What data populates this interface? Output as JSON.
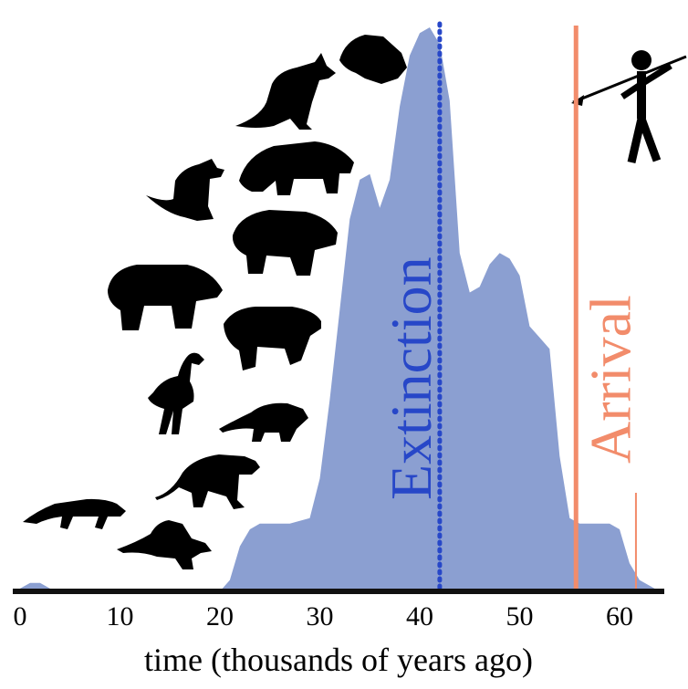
{
  "chart_data": {
    "type": "area",
    "xlabel": "time (thousands of years ago)",
    "xlim": [
      0,
      65
    ],
    "ylim": [
      0,
      1
    ],
    "grid": false,
    "x_ticks": [
      "0",
      "10",
      "20",
      "30",
      "40",
      "50",
      "60"
    ],
    "tick_values": [
      0,
      10,
      20,
      30,
      40,
      50,
      60
    ],
    "series": [
      {
        "color": "#8b9fd1",
        "x": [
          0,
          1,
          2,
          3,
          4,
          5,
          20,
          21,
          22,
          23,
          24,
          25,
          27,
          29,
          30,
          31,
          32,
          33,
          34,
          35,
          36,
          37,
          38,
          39,
          40,
          41,
          42,
          43,
          44,
          45,
          46,
          47,
          48,
          49,
          50,
          51,
          52,
          53,
          54,
          55,
          56,
          57,
          58,
          59,
          60,
          61,
          62,
          63,
          64
        ],
        "y": [
          0.005,
          0.015,
          0.015,
          0.005,
          0.0,
          0.0,
          0.0,
          0.02,
          0.08,
          0.11,
          0.12,
          0.12,
          0.12,
          0.13,
          0.2,
          0.34,
          0.5,
          0.66,
          0.73,
          0.74,
          0.68,
          0.73,
          0.86,
          0.95,
          0.99,
          1.0,
          0.97,
          0.87,
          0.6,
          0.53,
          0.54,
          0.58,
          0.6,
          0.59,
          0.56,
          0.47,
          0.45,
          0.43,
          0.24,
          0.13,
          0.12,
          0.12,
          0.12,
          0.12,
          0.11,
          0.05,
          0.02,
          0.01,
          0.0
        ]
      }
    ],
    "annotations": [
      {
        "text": "Extinction",
        "x": 42,
        "color": "#2747c8",
        "line": "dotted"
      },
      {
        "text": "Arrival",
        "x": 55,
        "color": "#f28c6b",
        "line": "solid"
      }
    ],
    "extra_lines": [
      {
        "x": 61,
        "color": "#f28c6b"
      }
    ]
  },
  "colors": {
    "area": "#8b9fd1",
    "extinction": "#2747c8",
    "arrival": "#f28c6b",
    "axis": "#111111"
  }
}
